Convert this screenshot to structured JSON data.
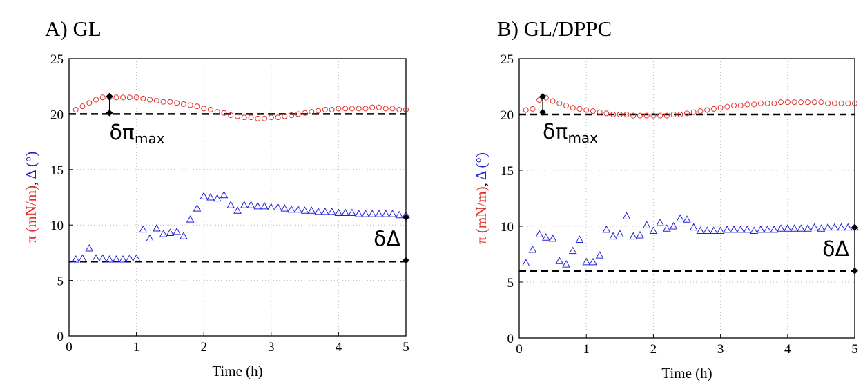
{
  "chart_data": [
    {
      "type": "scatter",
      "title": "A) GL",
      "xlabel": "Time (h)",
      "ylabel": [
        {
          "text": "π (mN/m)",
          "color": "#e0302a"
        },
        {
          "text": ", ",
          "color": "#000000"
        },
        {
          "text": "Δ (°)",
          "color": "#1f1fd6"
        }
      ],
      "xlim": [
        0,
        5
      ],
      "ylim": [
        0,
        25
      ],
      "xticks": [
        0,
        1,
        2,
        3,
        4,
        5
      ],
      "yticks": [
        0,
        5,
        10,
        15,
        20,
        25
      ],
      "grid": true,
      "x": [
        0.1,
        0.2,
        0.3,
        0.4,
        0.5,
        0.6,
        0.7,
        0.8,
        0.9,
        1.0,
        1.1,
        1.2,
        1.3,
        1.4,
        1.5,
        1.6,
        1.7,
        1.8,
        1.9,
        2.0,
        2.1,
        2.2,
        2.3,
        2.4,
        2.5,
        2.6,
        2.7,
        2.8,
        2.9,
        3.0,
        3.1,
        3.2,
        3.3,
        3.4,
        3.5,
        3.6,
        3.7,
        3.8,
        3.9,
        4.0,
        4.1,
        4.2,
        4.3,
        4.4,
        4.5,
        4.6,
        4.7,
        4.8,
        4.9,
        5.0
      ],
      "series": [
        {
          "marker": "circle",
          "color": "#e0302a",
          "values": [
            20.4,
            20.7,
            21.0,
            21.3,
            21.5,
            21.5,
            21.5,
            21.5,
            21.5,
            21.5,
            21.4,
            21.3,
            21.2,
            21.1,
            21.1,
            21.0,
            20.9,
            20.8,
            20.7,
            20.5,
            20.4,
            20.2,
            20.1,
            19.9,
            19.8,
            19.7,
            19.7,
            19.6,
            19.6,
            19.7,
            19.7,
            19.8,
            19.9,
            20.0,
            20.1,
            20.2,
            20.3,
            20.4,
            20.4,
            20.5,
            20.5,
            20.5,
            20.5,
            20.5,
            20.6,
            20.6,
            20.5,
            20.5,
            20.4,
            20.4
          ]
        },
        {
          "marker": "triangle",
          "color": "#1f1fd6",
          "values": [
            6.9,
            7.0,
            7.9,
            7.0,
            7.0,
            6.9,
            6.9,
            6.9,
            7.0,
            7.0,
            9.6,
            8.8,
            9.7,
            9.2,
            9.3,
            9.4,
            9.0,
            10.5,
            11.5,
            12.6,
            12.5,
            12.4,
            12.7,
            11.8,
            11.3,
            11.8,
            11.8,
            11.7,
            11.7,
            11.6,
            11.6,
            11.5,
            11.4,
            11.4,
            11.3,
            11.3,
            11.2,
            11.2,
            11.2,
            11.1,
            11.1,
            11.1,
            11.0,
            11.0,
            11.0,
            11.0,
            11.0,
            11.0,
            10.9,
            10.9
          ]
        }
      ],
      "hlines": [
        20,
        6.7
      ],
      "annotations": [
        {
          "text": "δπ",
          "subscript": "max",
          "x": 0.6,
          "y0": 20.1,
          "y1": 21.6
        },
        {
          "text": "δΔ",
          "x": 5,
          "y0": 6.8,
          "y1": 10.7
        }
      ]
    },
    {
      "type": "scatter",
      "title": "B) GL/DPPC",
      "xlabel": "Time (h)",
      "ylabel": [
        {
          "text": "π (mN/m)",
          "color": "#e0302a"
        },
        {
          "text": ", ",
          "color": "#000000"
        },
        {
          "text": "Δ (°)",
          "color": "#1f1fd6"
        }
      ],
      "xlim": [
        0,
        5
      ],
      "ylim": [
        0,
        25
      ],
      "xticks": [
        0,
        1,
        2,
        3,
        4,
        5
      ],
      "yticks": [
        0,
        5,
        10,
        15,
        20,
        25
      ],
      "grid": true,
      "x": [
        0.1,
        0.2,
        0.3,
        0.4,
        0.5,
        0.6,
        0.7,
        0.8,
        0.9,
        1.0,
        1.1,
        1.2,
        1.3,
        1.4,
        1.5,
        1.6,
        1.7,
        1.8,
        1.9,
        2.0,
        2.1,
        2.2,
        2.3,
        2.4,
        2.5,
        2.6,
        2.7,
        2.8,
        2.9,
        3.0,
        3.1,
        3.2,
        3.3,
        3.4,
        3.5,
        3.6,
        3.7,
        3.8,
        3.9,
        4.0,
        4.1,
        4.2,
        4.3,
        4.4,
        4.5,
        4.6,
        4.7,
        4.8,
        4.9,
        5.0
      ],
      "series": [
        {
          "marker": "circle",
          "color": "#e0302a",
          "values": [
            20.4,
            20.5,
            21.3,
            21.5,
            21.2,
            21.0,
            20.8,
            20.6,
            20.5,
            20.4,
            20.3,
            20.2,
            20.1,
            20.0,
            20.0,
            20.0,
            19.9,
            19.9,
            19.9,
            19.9,
            19.9,
            19.9,
            20.0,
            20.0,
            20.1,
            20.2,
            20.3,
            20.4,
            20.5,
            20.6,
            20.7,
            20.8,
            20.8,
            20.9,
            20.9,
            21.0,
            21.0,
            21.0,
            21.1,
            21.1,
            21.1,
            21.1,
            21.1,
            21.1,
            21.1,
            21.0,
            21.0,
            21.0,
            21.0,
            21.0
          ]
        },
        {
          "marker": "triangle",
          "color": "#1f1fd6",
          "values": [
            6.7,
            7.9,
            9.3,
            9.0,
            8.9,
            6.9,
            6.6,
            7.8,
            8.8,
            6.8,
            6.8,
            7.4,
            9.7,
            9.1,
            9.3,
            10.9,
            9.1,
            9.2,
            10.1,
            9.6,
            10.3,
            9.8,
            10.0,
            10.7,
            10.6,
            9.9,
            9.6,
            9.6,
            9.6,
            9.6,
            9.7,
            9.7,
            9.7,
            9.7,
            9.6,
            9.7,
            9.7,
            9.7,
            9.8,
            9.8,
            9.8,
            9.8,
            9.8,
            9.9,
            9.8,
            9.9,
            9.9,
            9.9,
            9.9,
            9.9
          ]
        }
      ],
      "hlines": [
        20,
        6
      ],
      "annotations": [
        {
          "text": "δπ",
          "subscript": "max",
          "x": 0.35,
          "y0": 20.2,
          "y1": 21.6
        },
        {
          "text": "δΔ",
          "x": 5,
          "y0": 6.0,
          "y1": 9.9
        }
      ]
    }
  ]
}
